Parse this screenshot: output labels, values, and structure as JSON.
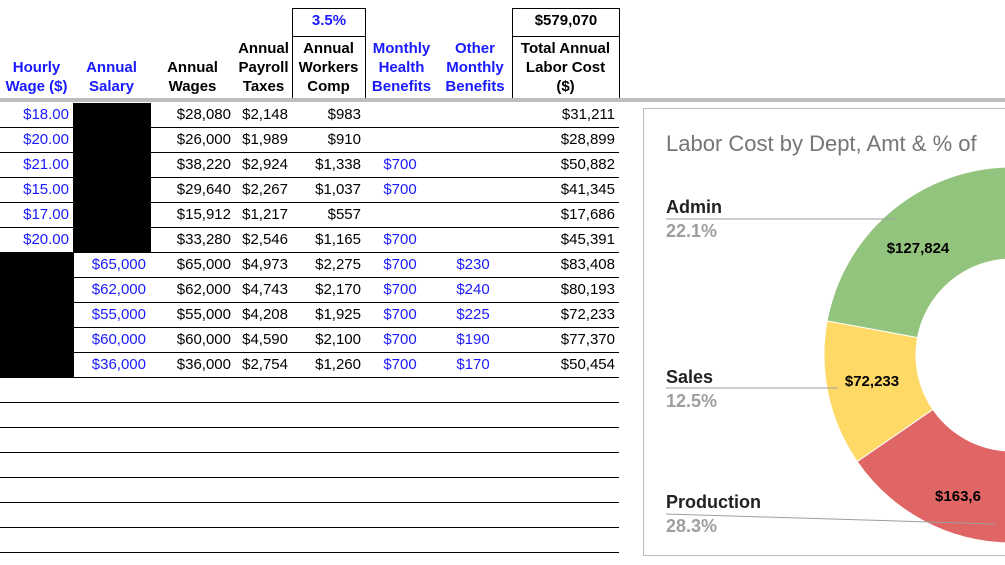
{
  "sheet": {
    "header_top": {
      "workers_comp_rate": "3.5%",
      "total": "$579,070"
    },
    "headers": [
      [
        "Hourly",
        "Wage ($)"
      ],
      [
        "Annual",
        "Salary"
      ],
      [
        "Annual",
        "Wages"
      ],
      [
        "Annual",
        "Payroll",
        "Taxes"
      ],
      [
        "Annual",
        "Workers",
        "Comp"
      ],
      [
        "Monthly",
        "Health",
        "Benefits"
      ],
      [
        "Other",
        "Monthly",
        "Benefits"
      ],
      [
        "Total Annual",
        "Labor Cost",
        "($)"
      ]
    ],
    "rows": [
      [
        "$18.00",
        null,
        "$28,080",
        "$2,148",
        "$983",
        null,
        null,
        "$31,211"
      ],
      [
        "$20.00",
        null,
        "$26,000",
        "$1,989",
        "$910",
        null,
        null,
        "$28,899"
      ],
      [
        "$21.00",
        null,
        "$38,220",
        "$2,924",
        "$1,338",
        "$700",
        null,
        "$50,882"
      ],
      [
        "$15.00",
        null,
        "$29,640",
        "$2,267",
        "$1,037",
        "$700",
        null,
        "$41,345"
      ],
      [
        "$17.00",
        null,
        "$15,912",
        "$1,217",
        "$557",
        null,
        null,
        "$17,686"
      ],
      [
        "$20.00",
        null,
        "$33,280",
        "$2,546",
        "$1,165",
        "$700",
        null,
        "$45,391"
      ],
      [
        null,
        "$65,000",
        "$65,000",
        "$4,973",
        "$2,275",
        "$700",
        "$230",
        "$83,408"
      ],
      [
        null,
        "$62,000",
        "$62,000",
        "$4,743",
        "$2,170",
        "$700",
        "$240",
        "$80,193"
      ],
      [
        null,
        "$55,000",
        "$55,000",
        "$4,208",
        "$1,925",
        "$700",
        "$225",
        "$72,233"
      ],
      [
        null,
        "$60,000",
        "$60,000",
        "$4,590",
        "$2,100",
        "$700",
        "$190",
        "$77,370"
      ],
      [
        null,
        "$36,000",
        "$36,000",
        "$2,754",
        "$1,260",
        "$700",
        "$170",
        "$50,454"
      ]
    ]
  },
  "chart": {
    "title": "Labor Cost by Dept, Amt & % of",
    "slices": [
      {
        "label": "Admin",
        "percent": "22.1%",
        "amount": "$127,824",
        "color": "#93c47d"
      },
      {
        "label": "Sales",
        "percent": "12.5%",
        "amount": "$72,233",
        "color": "#ffd966"
      },
      {
        "label": "Production",
        "percent": "28.3%",
        "amount": "$163,6",
        "color": "#e06666"
      }
    ]
  }
}
